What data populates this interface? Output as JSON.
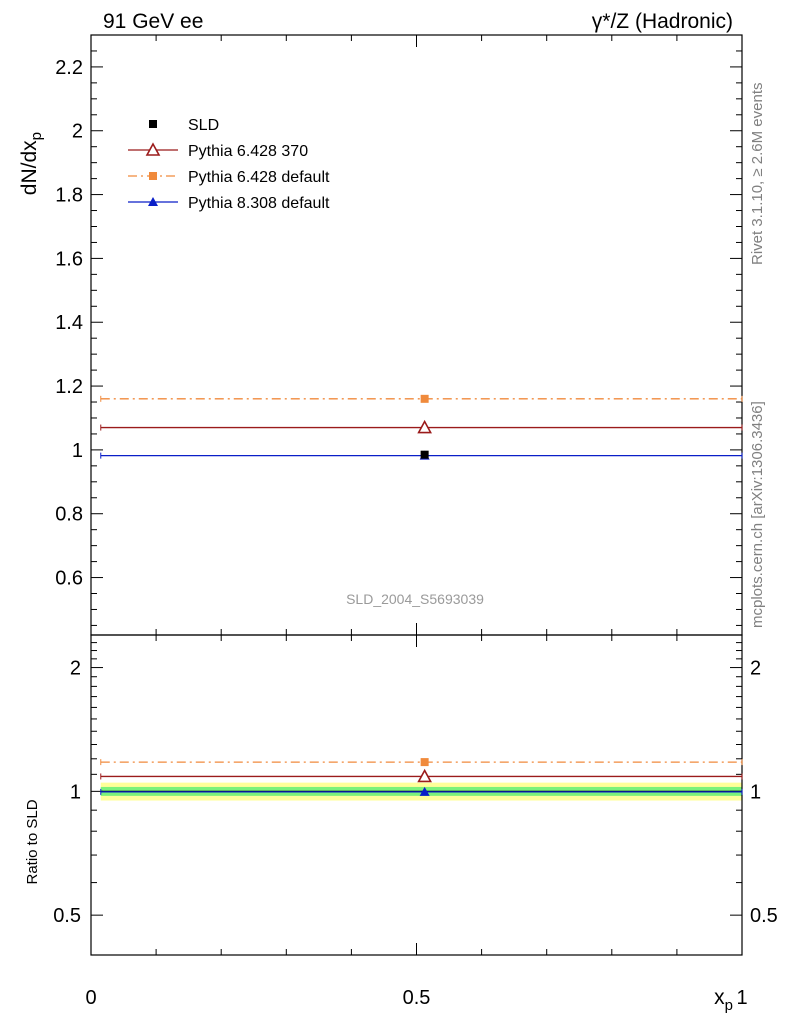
{
  "header": {
    "left": "91 GeV ee",
    "right": "γ*/Z (Hadronic)"
  },
  "side_labels": {
    "rivet": "Rivet 3.1.10, ≥ 2.6M events",
    "mcplots": "mcplots.cern.ch [arXiv:1306.3436]"
  },
  "watermark": "SLD_2004_S5693039",
  "colors": {
    "sld": "#000000",
    "py6_370": "#9b1b1b",
    "py6_default": "#f08a3c",
    "py8": "#0a1fc8",
    "band_inner": "#7bf27b",
    "band_outer": "#ffff99"
  },
  "chart_data": [
    {
      "type": "scatter",
      "ylabel": "dN/dx_p",
      "xlim": [
        0,
        1
      ],
      "ylim": [
        0.42,
        2.3
      ],
      "yticks": [
        0.6,
        0.8,
        1.0,
        1.2,
        1.4,
        1.6,
        1.8,
        2.0,
        2.2
      ],
      "ytick_labels": [
        "0.6",
        "0.8",
        "1",
        "1.2",
        "1.4",
        "1.6",
        "1.8",
        "2",
        "2.2"
      ],
      "legend": {
        "position": "top-left"
      },
      "series": [
        {
          "name": "SLD",
          "key": "sld",
          "marker": "square-filled",
          "line": "none",
          "x": 0.5125,
          "xlow": 0.5125,
          "xhigh": 0.5125,
          "y": 0.985
        },
        {
          "name": "Pythia 6.428 370",
          "key": "py6_370",
          "marker": "triangle-open",
          "line": "solid",
          "x": 0.5125,
          "xlow": 0.015,
          "xhigh": 1.0,
          "y": 1.07
        },
        {
          "name": "Pythia 6.428 default",
          "key": "py6_default",
          "marker": "square-filled",
          "line": "dashdot",
          "x": 0.5125,
          "xlow": 0.015,
          "xhigh": 1.0,
          "y": 1.16
        },
        {
          "name": "Pythia 8.308 default",
          "key": "py8",
          "marker": "triangle-filled",
          "line": "solid",
          "x": 0.5125,
          "xlow": 0.015,
          "xhigh": 1.0,
          "y": 0.982
        }
      ]
    },
    {
      "type": "scatter",
      "ylabel": "Ratio to SLD",
      "xlabel": "x_p",
      "xlim": [
        0,
        1
      ],
      "xticks": [
        0,
        0.5,
        1
      ],
      "xtick_labels": [
        "0",
        "0.5",
        "1"
      ],
      "ylim": [
        0.4,
        2.4
      ],
      "yscale": "log",
      "yticks": [
        0.5,
        1,
        2
      ],
      "ytick_labels": [
        "0.5",
        "1",
        "2"
      ],
      "band": {
        "xlow": 0.015,
        "xhigh": 1.0,
        "inner": [
          0.975,
          1.025
        ],
        "outer": [
          0.95,
          1.05
        ]
      },
      "series": [
        {
          "name": "Pythia 6.428 370",
          "key": "py6_370",
          "marker": "triangle-open",
          "line": "solid",
          "x": 0.5125,
          "xlow": 0.015,
          "xhigh": 1.0,
          "y": 1.087
        },
        {
          "name": "Pythia 6.428 default",
          "key": "py6_default",
          "marker": "square-filled",
          "line": "dashdot",
          "x": 0.5125,
          "xlow": 0.015,
          "xhigh": 1.0,
          "y": 1.178
        },
        {
          "name": "Pythia 8.308 default",
          "key": "py8",
          "marker": "triangle-filled",
          "line": "solid",
          "x": 0.5125,
          "xlow": 0.015,
          "xhigh": 1.0,
          "y": 0.997
        }
      ]
    }
  ]
}
